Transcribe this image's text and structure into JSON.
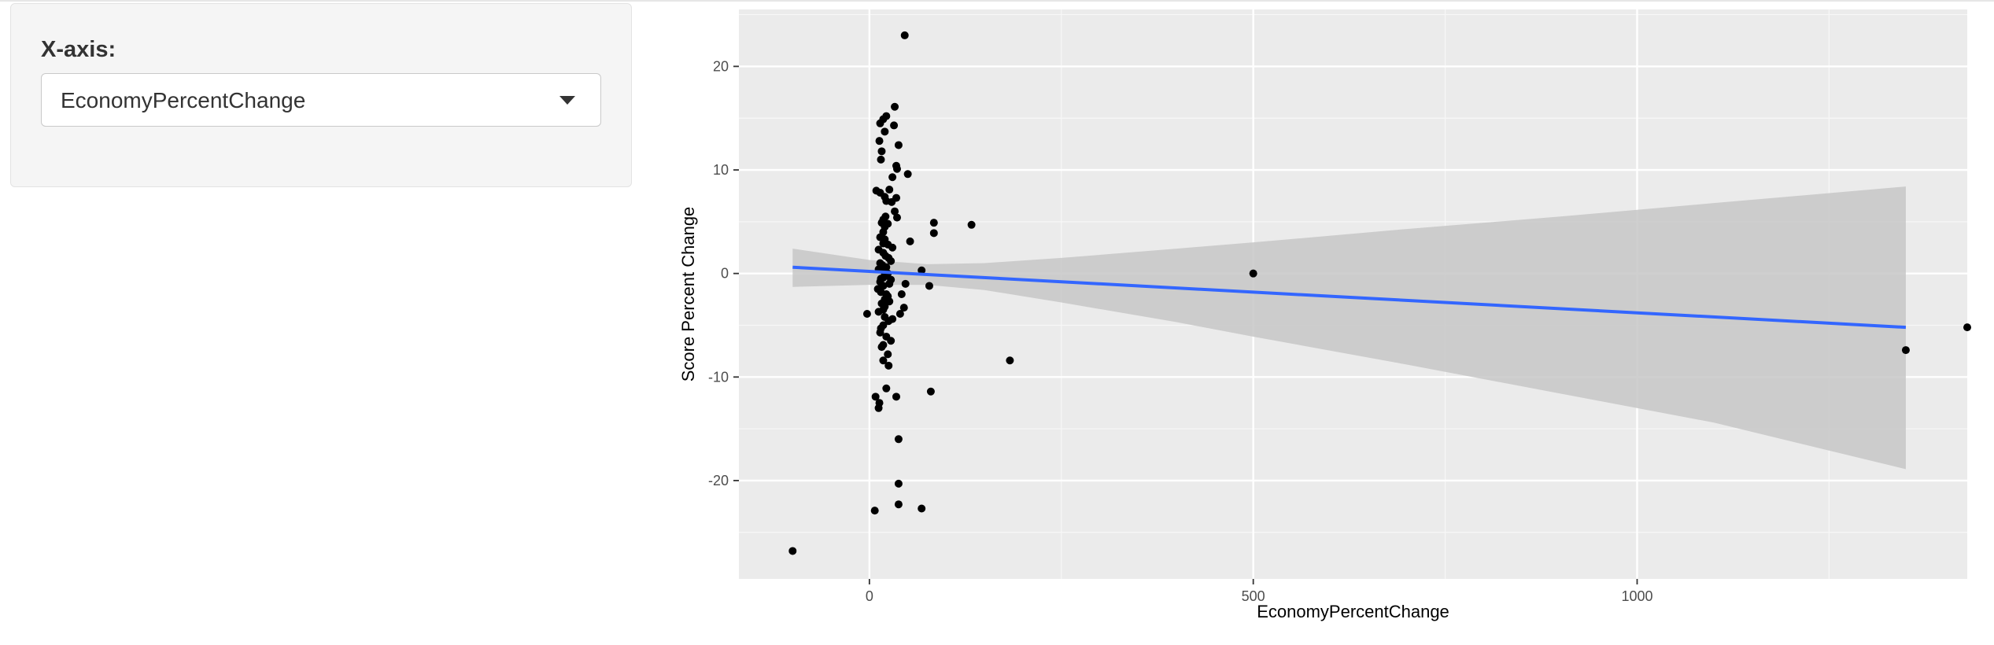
{
  "sidebar": {
    "label": "X-axis:",
    "select_value": "EconomyPercentChange"
  },
  "chart_data": {
    "type": "scatter",
    "xlabel": "EconomyPercentChange",
    "ylabel": "Score Percent Change",
    "xlim": [
      -170,
      1430
    ],
    "ylim": [
      -29.5,
      25.5
    ],
    "x_ticks": [
      0,
      500,
      1000
    ],
    "x_tick_labels": [
      "0",
      "500",
      "1000"
    ],
    "y_ticks": [
      -20,
      -10,
      0,
      10,
      20
    ],
    "y_tick_labels": [
      "-20",
      "-10",
      "0",
      "10",
      "20"
    ],
    "grid": true,
    "panel_color": "#ebebeb",
    "point_color": "#000000",
    "fit_line_color": "#3366ff",
    "ribbon_color": "#c7c7c7",
    "fit_line": {
      "x": [
        -100,
        1350
      ],
      "y": [
        0.6,
        -5.2
      ]
    },
    "confidence_band": {
      "x": [
        -100,
        0,
        75,
        150,
        250,
        400,
        500,
        700,
        900,
        1100,
        1350
      ],
      "upper": [
        2.4,
        1.3,
        0.9,
        1.0,
        1.5,
        2.4,
        3.0,
        4.3,
        5.5,
        6.8,
        8.4
      ],
      "lower": [
        -1.3,
        -1.1,
        -1.1,
        -1.6,
        -2.8,
        -4.7,
        -6.1,
        -8.8,
        -11.6,
        -14.4,
        -18.9
      ]
    },
    "points": {
      "x": [
        46,
        33,
        22,
        18,
        14,
        32,
        20,
        13,
        38,
        16,
        15,
        35,
        36,
        50,
        30,
        9,
        14,
        26,
        20,
        22,
        35,
        29,
        33,
        21,
        18,
        36,
        16,
        24,
        20,
        18,
        84,
        133,
        84,
        14,
        20,
        18,
        53,
        24,
        30,
        12,
        18,
        21,
        25,
        28,
        14,
        17,
        22,
        12,
        19,
        24,
        22,
        18,
        15,
        68,
        14,
        26,
        28,
        18,
        47,
        78,
        11,
        15,
        22,
        24,
        20,
        26,
        16,
        20,
        45,
        18,
        12,
        40,
        -3,
        20,
        30,
        25,
        18,
        42,
        15,
        14,
        22,
        28,
        18,
        16,
        24,
        18,
        183,
        25,
        22,
        80,
        35,
        8,
        13,
        12,
        38,
        38,
        7,
        38,
        68,
        -100,
        500,
        1350,
        1430
      ],
      "y": [
        23.0,
        16.1,
        15.2,
        14.9,
        14.5,
        14.3,
        13.7,
        12.8,
        12.4,
        11.8,
        11.0,
        10.4,
        10.1,
        9.6,
        9.3,
        8.0,
        7.8,
        8.1,
        7.4,
        7.0,
        7.3,
        6.9,
        6.0,
        5.5,
        5.2,
        5.4,
        4.9,
        4.8,
        4.5,
        4.0,
        4.9,
        4.7,
        3.9,
        3.5,
        3.3,
        2.9,
        3.1,
        2.8,
        2.5,
        2.3,
        2.0,
        1.7,
        1.5,
        1.2,
        1.0,
        0.8,
        0.6,
        0.4,
        0.2,
        0.0,
        -0.2,
        -0.4,
        -0.5,
        0.3,
        -0.8,
        -1.0,
        -0.6,
        -1.2,
        -1.0,
        -1.2,
        -1.5,
        -1.8,
        -2.0,
        -2.2,
        -2.5,
        -2.7,
        -2.9,
        -3.2,
        -3.3,
        -3.5,
        -3.7,
        -3.9,
        -3.9,
        -4.2,
        -4.4,
        -4.6,
        -5.0,
        -2.0,
        -5.3,
        -5.7,
        -6.1,
        -6.5,
        -6.9,
        -7.1,
        -7.8,
        -8.4,
        -8.4,
        -8.9,
        -11.1,
        -11.4,
        -11.9,
        -11.9,
        -12.5,
        -13.0,
        -16.0,
        -20.3,
        -22.9,
        -22.3,
        -22.7,
        -26.8,
        0.0,
        -7.4,
        -5.2
      ]
    }
  }
}
